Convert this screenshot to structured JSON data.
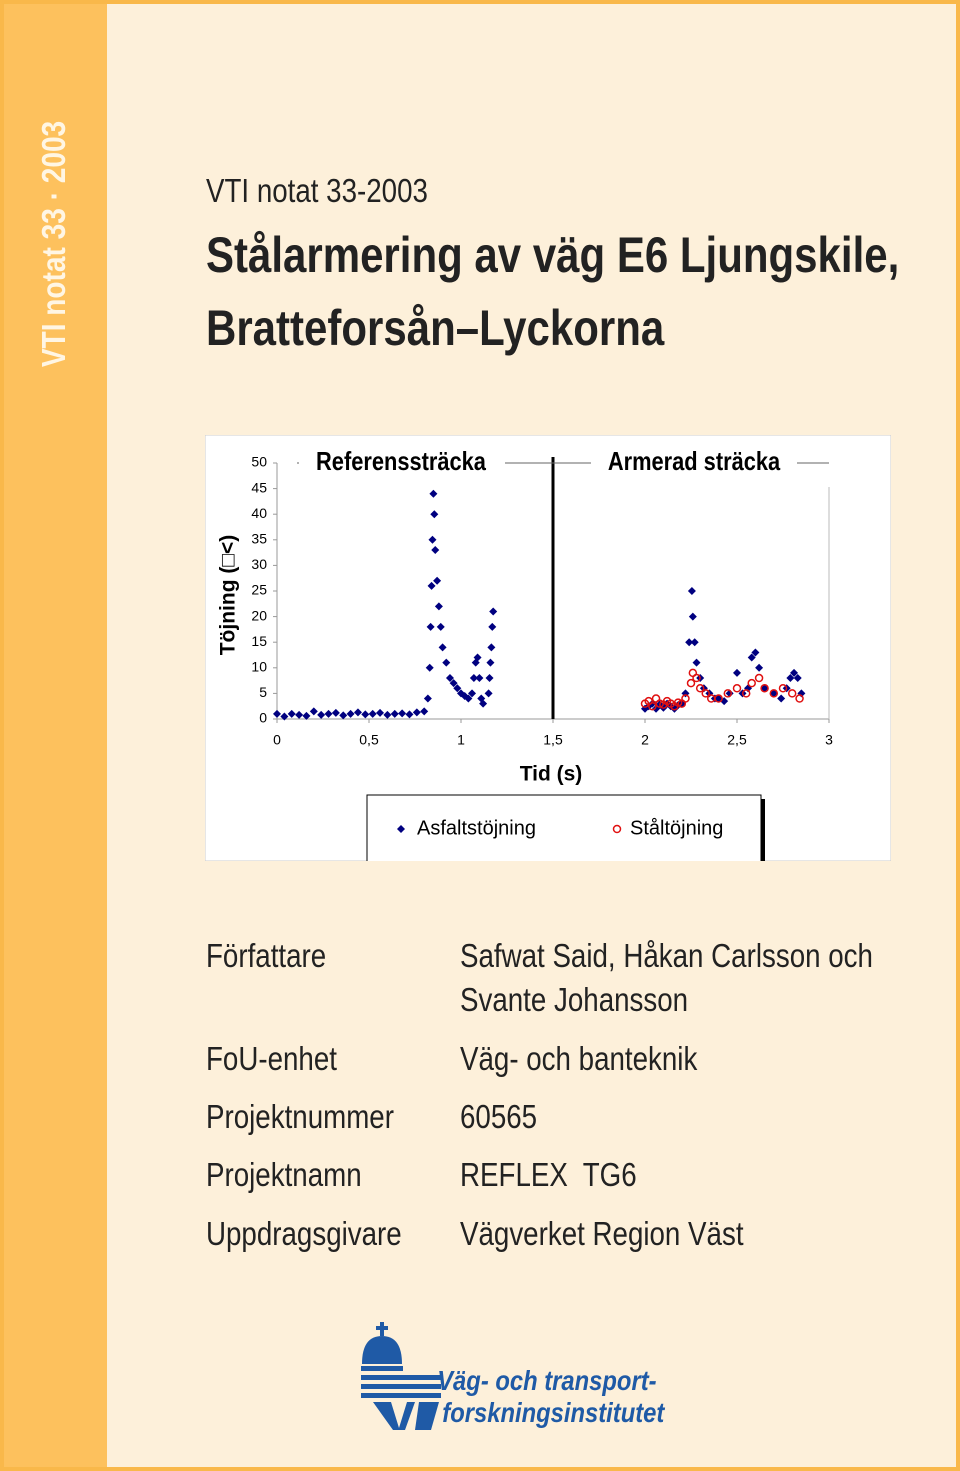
{
  "sidebar": "VTI notat 33 · 2003",
  "header": {
    "series_label": "VTI notat 33-2003",
    "title": [
      "Stålarmering av väg E6 Ljungskile,",
      "Bratteforsån–Lyckorna"
    ]
  },
  "chart_data": {
    "type": "scatter",
    "xlabel": "Tid (s)",
    "ylabel": "Töjning (□<)",
    "annotations": [
      "Referenssträcka",
      "Armerad sträcka"
    ],
    "divider_x": 1.5,
    "xlim": [
      0,
      3
    ],
    "ylim": [
      0,
      50
    ],
    "xticks": [
      0,
      {
        "value": 0.5,
        "label": "0,5"
      },
      1,
      {
        "value": 1.5,
        "label": "1,5"
      },
      2,
      {
        "value": 2.5,
        "label": "2,5"
      },
      3
    ],
    "yticks": [
      0,
      5,
      10,
      15,
      20,
      25,
      30,
      35,
      40,
      45,
      50
    ],
    "legend": "bottom",
    "series": [
      {
        "name": "Asfaltstöjning",
        "color": "#000080",
        "marker": "diamond",
        "x": [
          0,
          0.04,
          0.08,
          0.12,
          0.16,
          0.2,
          0.24,
          0.28,
          0.32,
          0.36,
          0.4,
          0.44,
          0.48,
          0.52,
          0.56,
          0.6,
          0.64,
          0.68,
          0.72,
          0.76,
          0.8,
          0.82,
          0.83,
          0.835,
          0.84,
          0.845,
          0.85,
          0.855,
          0.86,
          0.87,
          0.88,
          0.89,
          0.9,
          0.92,
          0.94,
          0.96,
          0.98,
          1.0,
          1.02,
          1.04,
          1.06,
          1.07,
          1.08,
          1.09,
          1.1,
          1.11,
          1.12,
          1.15,
          1.155,
          1.16,
          1.165,
          1.17,
          1.175,
          2.0,
          2.02,
          2.04,
          2.06,
          2.08,
          2.1,
          2.12,
          2.14,
          2.16,
          2.18,
          2.2,
          2.22,
          2.24,
          2.255,
          2.26,
          2.27,
          2.28,
          2.3,
          2.32,
          2.35,
          2.38,
          2.4,
          2.43,
          2.46,
          2.5,
          2.53,
          2.56,
          2.58,
          2.6,
          2.62,
          2.65,
          2.7,
          2.74,
          2.77,
          2.79,
          2.81,
          2.83,
          2.85
        ],
        "values": [
          1,
          0.5,
          1,
          0.8,
          0.6,
          1.5,
          0.8,
          1,
          1.2,
          0.7,
          1,
          1.3,
          0.9,
          1,
          1.2,
          0.8,
          1,
          1.1,
          0.9,
          1.3,
          1.5,
          4,
          10,
          18,
          26,
          35,
          44,
          40,
          33,
          27,
          22,
          18,
          14,
          11,
          8,
          7,
          6,
          5,
          4.5,
          4,
          5,
          8,
          11,
          12,
          8,
          4,
          3,
          5,
          8,
          11,
          14,
          18,
          21,
          2,
          2.5,
          3,
          2,
          2.8,
          2.2,
          3,
          2.5,
          2,
          2.7,
          3,
          5,
          15,
          25,
          20,
          15,
          11,
          8,
          6,
          5,
          4,
          4,
          3.5,
          5,
          9,
          5,
          6,
          12,
          13,
          10,
          6,
          5,
          4,
          6,
          8,
          9,
          8,
          5
        ]
      },
      {
        "name": "Ståltöjning",
        "color": "#e01010",
        "marker": "circle",
        "x": [
          2.0,
          2.02,
          2.04,
          2.06,
          2.08,
          2.1,
          2.12,
          2.14,
          2.16,
          2.18,
          2.2,
          2.22,
          2.25,
          2.26,
          2.28,
          2.3,
          2.33,
          2.36,
          2.4,
          2.45,
          2.5,
          2.55,
          2.58,
          2.62,
          2.65,
          2.7,
          2.75,
          2.8,
          2.84
        ],
        "values": [
          3,
          3.5,
          2.5,
          4,
          3,
          2.8,
          3.5,
          3,
          2.5,
          3.2,
          3,
          4,
          7,
          9,
          8,
          6,
          5,
          4,
          4,
          5,
          6,
          5,
          7,
          8,
          6,
          5,
          6,
          5,
          4
        ]
      }
    ]
  },
  "info": [
    {
      "label": "Författare",
      "value": [
        "Safwat Said, Håkan Carlsson och",
        "Svante Johansson"
      ]
    },
    {
      "label": "FoU-enhet",
      "value": [
        "Väg- och banteknik"
      ]
    },
    {
      "label": "Projektnummer",
      "value": [
        "60565"
      ]
    },
    {
      "label": "Projektnamn",
      "value": [
        "REFLEX  TG6"
      ]
    },
    {
      "label": "Uppdragsgivare",
      "value": [
        "Vägverket Region Väst"
      ]
    }
  ],
  "logo": {
    "text": [
      "Väg- och transport-",
      "forskningsinstitutet"
    ]
  }
}
